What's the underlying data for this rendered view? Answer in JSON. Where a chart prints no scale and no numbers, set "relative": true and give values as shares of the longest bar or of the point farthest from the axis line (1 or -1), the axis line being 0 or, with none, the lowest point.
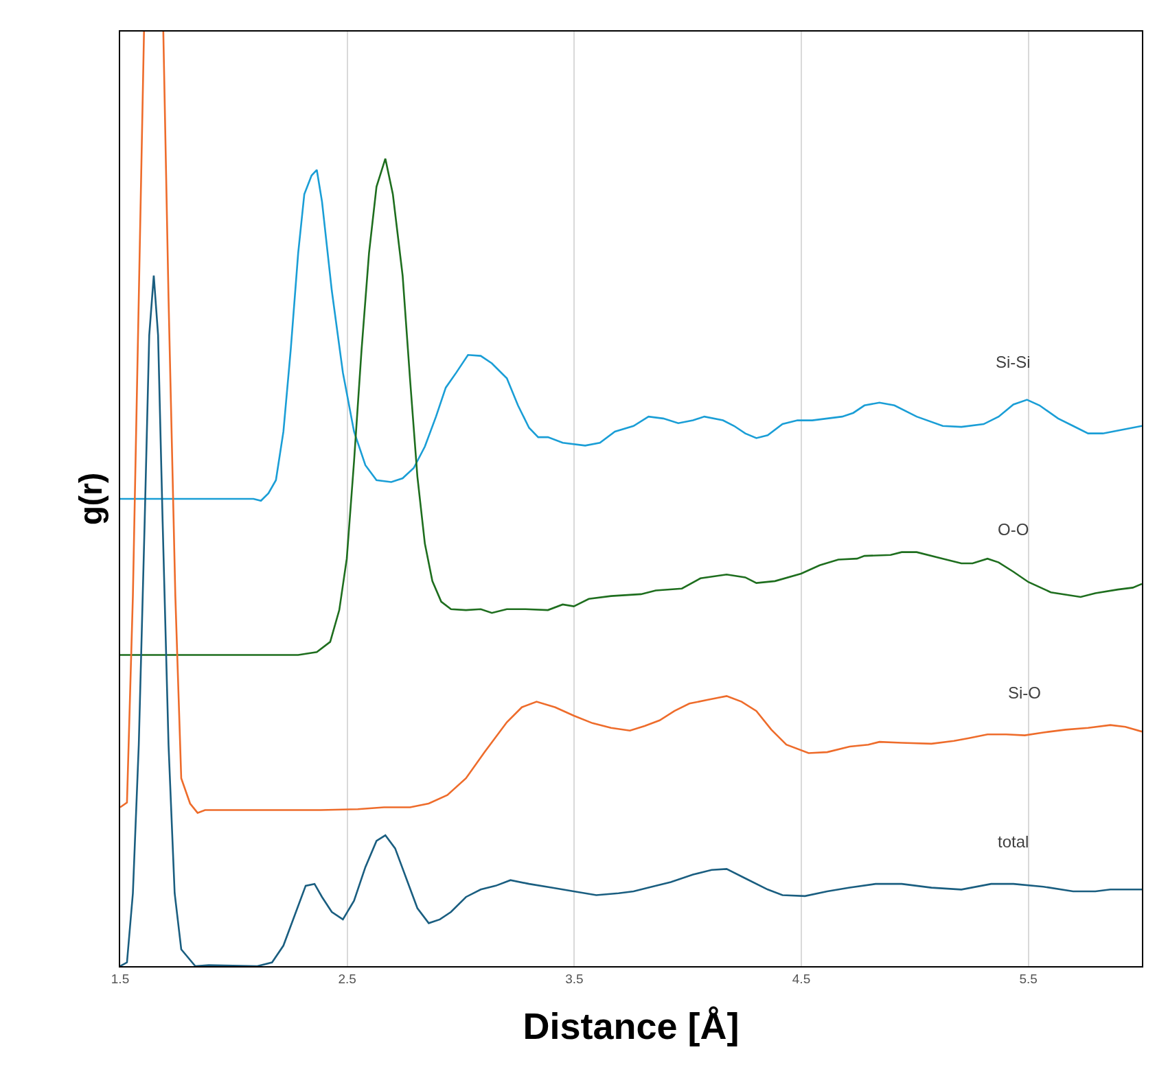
{
  "chart_data": {
    "type": "line",
    "relative": true,
    "xlabel": "Distance [Å]",
    "ylabel": "g(r)",
    "xlim": [
      1.5,
      6.0
    ],
    "xticks": [
      1.5,
      2.5,
      3.5,
      4.5,
      5.5
    ],
    "grid": "x",
    "legend": false,
    "tick_labels": "x",
    "line_style": "solid",
    "marker": "none",
    "series": [
      {
        "name": "Si-Si",
        "color": "#1a9ed6",
        "x": [
          1.5,
          2.087,
          2.12,
          2.153,
          2.186,
          2.219,
          2.251,
          2.284,
          2.311,
          2.343,
          2.366,
          2.389,
          2.432,
          2.481,
          2.53,
          2.58,
          2.629,
          2.694,
          2.744,
          2.793,
          2.842,
          2.891,
          2.934,
          2.98,
          3.032,
          3.088,
          3.137,
          3.203,
          3.252,
          3.301,
          3.341,
          3.384,
          3.449,
          3.548,
          3.613,
          3.679,
          3.761,
          3.827,
          3.892,
          3.958,
          4.023,
          4.073,
          4.155,
          4.204,
          4.253,
          4.302,
          4.352,
          4.417,
          4.483,
          4.548,
          4.614,
          4.68,
          4.729,
          4.778,
          4.844,
          4.91,
          5.008,
          5.123,
          5.205,
          5.303,
          5.369,
          5.434,
          5.494,
          5.549,
          5.631,
          5.697,
          5.763,
          5.828,
          5.894,
          6.0
        ],
        "values": [
          0.5,
          0.5,
          0.498,
          0.506,
          0.52,
          0.572,
          0.659,
          0.763,
          0.826,
          0.846,
          0.852,
          0.818,
          0.723,
          0.635,
          0.572,
          0.536,
          0.52,
          0.518,
          0.522,
          0.533,
          0.556,
          0.588,
          0.619,
          0.635,
          0.654,
          0.653,
          0.645,
          0.629,
          0.6,
          0.576,
          0.566,
          0.566,
          0.56,
          0.557,
          0.56,
          0.572,
          0.578,
          0.588,
          0.586,
          0.581,
          0.584,
          0.588,
          0.584,
          0.578,
          0.57,
          0.565,
          0.568,
          0.58,
          0.584,
          0.584,
          0.586,
          0.588,
          0.592,
          0.6,
          0.603,
          0.6,
          0.588,
          0.578,
          0.577,
          0.58,
          0.588,
          0.601,
          0.606,
          0.6,
          0.586,
          0.578,
          0.57,
          0.57,
          0.573,
          0.578
        ]
      },
      {
        "name": "O-O",
        "color": "#1e6e1e",
        "x": [
          1.5,
          1.956,
          2.284,
          2.366,
          2.425,
          2.465,
          2.498,
          2.53,
          2.563,
          2.596,
          2.629,
          2.668,
          2.701,
          2.744,
          2.777,
          2.809,
          2.842,
          2.875,
          2.914,
          2.957,
          3.023,
          3.088,
          3.137,
          3.203,
          3.285,
          3.384,
          3.449,
          3.498,
          3.564,
          3.662,
          3.794,
          3.859,
          3.974,
          4.056,
          4.171,
          4.253,
          4.302,
          4.384,
          4.499,
          4.581,
          4.663,
          4.745,
          4.778,
          4.893,
          4.942,
          5.008,
          5.123,
          5.205,
          5.254,
          5.32,
          5.369,
          5.434,
          5.5,
          5.599,
          5.73,
          5.795,
          5.894,
          5.96,
          6.0
        ],
        "values": [
          0.333,
          0.333,
          0.333,
          0.336,
          0.347,
          0.381,
          0.436,
          0.54,
          0.659,
          0.763,
          0.834,
          0.864,
          0.826,
          0.739,
          0.627,
          0.524,
          0.452,
          0.412,
          0.39,
          0.382,
          0.381,
          0.382,
          0.378,
          0.382,
          0.382,
          0.381,
          0.387,
          0.385,
          0.393,
          0.396,
          0.398,
          0.402,
          0.404,
          0.415,
          0.419,
          0.416,
          0.41,
          0.412,
          0.42,
          0.429,
          0.435,
          0.436,
          0.439,
          0.44,
          0.443,
          0.443,
          0.436,
          0.431,
          0.431,
          0.436,
          0.432,
          0.422,
          0.411,
          0.4,
          0.395,
          0.399,
          0.403,
          0.405,
          0.409
        ]
      },
      {
        "name": "Si-O",
        "color": "#ee6c2b",
        "x": [
          1.5,
          1.53,
          1.556,
          1.582,
          1.605,
          1.65,
          1.69,
          1.713,
          1.743,
          1.769,
          1.808,
          1.841,
          1.874,
          2.12,
          2.383,
          2.547,
          2.662,
          2.777,
          2.859,
          2.941,
          3.023,
          3.105,
          3.203,
          3.269,
          3.334,
          3.416,
          3.498,
          3.58,
          3.662,
          3.745,
          3.81,
          3.876,
          3.941,
          4.007,
          4.089,
          4.171,
          4.237,
          4.302,
          4.368,
          4.434,
          4.532,
          4.614,
          4.713,
          4.795,
          4.844,
          4.942,
          5.073,
          5.172,
          5.238,
          5.32,
          5.402,
          5.484,
          5.566,
          5.664,
          5.763,
          5.861,
          5.927,
          6.0
        ],
        "values": [
          0.17,
          0.175,
          0.396,
          0.715,
          1.0,
          null,
          1.0,
          0.715,
          0.396,
          0.201,
          0.174,
          0.164,
          0.167,
          0.167,
          0.167,
          0.168,
          0.17,
          0.17,
          0.174,
          0.183,
          0.201,
          0.229,
          0.261,
          0.277,
          0.283,
          0.277,
          0.268,
          0.26,
          0.255,
          0.252,
          0.257,
          0.263,
          0.273,
          0.281,
          0.285,
          0.289,
          0.283,
          0.273,
          0.253,
          0.237,
          0.228,
          0.229,
          0.235,
          0.237,
          0.24,
          0.239,
          0.238,
          0.241,
          0.244,
          0.248,
          0.248,
          0.247,
          0.25,
          0.253,
          0.255,
          0.258,
          0.256,
          0.251
        ]
      },
      {
        "name": "total",
        "color": "#1a5e80",
        "x": [
          1.5,
          1.53,
          1.556,
          1.582,
          1.608,
          1.628,
          1.648,
          1.667,
          1.687,
          1.713,
          1.74,
          1.769,
          1.831,
          1.89,
          2.104,
          2.169,
          2.219,
          2.268,
          2.317,
          2.356,
          2.389,
          2.432,
          2.481,
          2.53,
          2.58,
          2.629,
          2.668,
          2.711,
          2.76,
          2.809,
          2.859,
          2.908,
          2.957,
          3.023,
          3.088,
          3.154,
          3.219,
          3.301,
          3.4,
          3.498,
          3.597,
          3.695,
          3.761,
          3.827,
          3.925,
          4.023,
          4.105,
          4.171,
          4.253,
          4.352,
          4.417,
          4.516,
          4.614,
          4.713,
          4.827,
          4.942,
          5.073,
          5.205,
          5.336,
          5.434,
          5.566,
          5.697,
          5.795,
          5.861,
          6.0
        ],
        "values": [
          0,
          0.004,
          0.078,
          0.237,
          0.476,
          0.675,
          0.739,
          0.675,
          0.476,
          0.237,
          0.078,
          0.018,
          0,
          0.001,
          0,
          0.004,
          0.022,
          0.054,
          0.086,
          0.088,
          0.074,
          0.058,
          0.05,
          0.07,
          0.106,
          0.134,
          0.14,
          0.126,
          0.094,
          0.062,
          0.046,
          0.05,
          0.058,
          0.074,
          0.082,
          0.086,
          0.092,
          0.088,
          0.084,
          0.08,
          0.076,
          0.078,
          0.08,
          0.084,
          0.09,
          0.098,
          0.103,
          0.104,
          0.094,
          0.082,
          0.076,
          0.075,
          0.08,
          0.084,
          0.088,
          0.088,
          0.084,
          0.082,
          0.088,
          0.088,
          0.085,
          0.08,
          0.08,
          0.082,
          0.082
        ]
      }
    ]
  }
}
